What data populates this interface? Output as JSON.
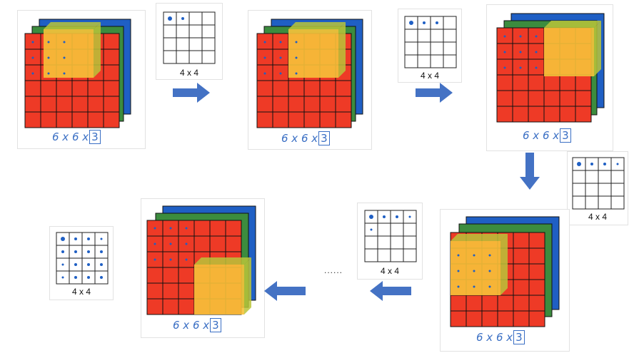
{
  "volume_caption": {
    "base": "6 x 6 x",
    "boxed": "3"
  },
  "output_label": "4 x 4",
  "ellipsis": "......",
  "colors": {
    "red": "#ee3a26",
    "green": "#3c8c3e",
    "blue": "#1f5fc4",
    "filter": "#f6c23a",
    "filter_side": "#b8c43a",
    "arrow": "#4472c4",
    "dot": "#1f5fc4"
  }
}
